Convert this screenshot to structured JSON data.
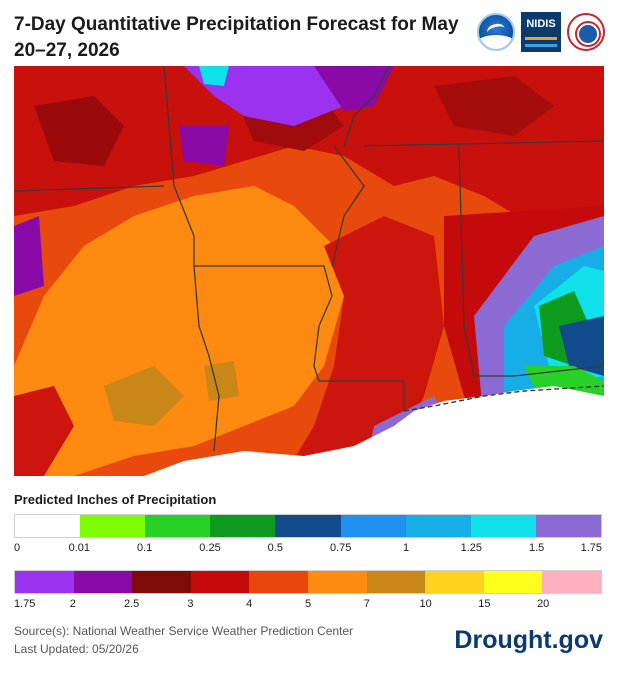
{
  "header": {
    "title": "7-Day Quantitative Precipitation Forecast for May 20–27, 2026",
    "logos": [
      "noaa-logo",
      "nidis-logo",
      "nws-logo"
    ],
    "nidis_text": "NIDIS"
  },
  "legend": {
    "title": "Predicted Inches of Precipitation",
    "row1": {
      "colors": [
        "#ffffff",
        "#7cfc00",
        "#28d028",
        "#0e9a1c",
        "#124b8c",
        "#1f8ff0",
        "#17aee8",
        "#10e0ea",
        "#8b6ad4"
      ],
      "ticks": [
        "0",
        "0.01",
        "0.1",
        "0.25",
        "0.5",
        "0.75",
        "1",
        "1.25",
        "1.5",
        "1.75"
      ]
    },
    "row2": {
      "colors": [
        "#9a32f0",
        "#8a0aa8",
        "#7f0a0a",
        "#c40a0a",
        "#e8460a",
        "#ff8a12",
        "#c88716",
        "#ffd21e",
        "#ffff1e",
        "#ffb0c0"
      ],
      "ticks": [
        "1.75",
        "2",
        "2.5",
        "3",
        "4",
        "5",
        "7",
        "10",
        "15",
        "20"
      ]
    }
  },
  "footer": {
    "source": "Source(s): National Weather Service Weather Prediction Center",
    "updated": "Last Updated: 05/20/26",
    "brand": "Drought.gov"
  }
}
